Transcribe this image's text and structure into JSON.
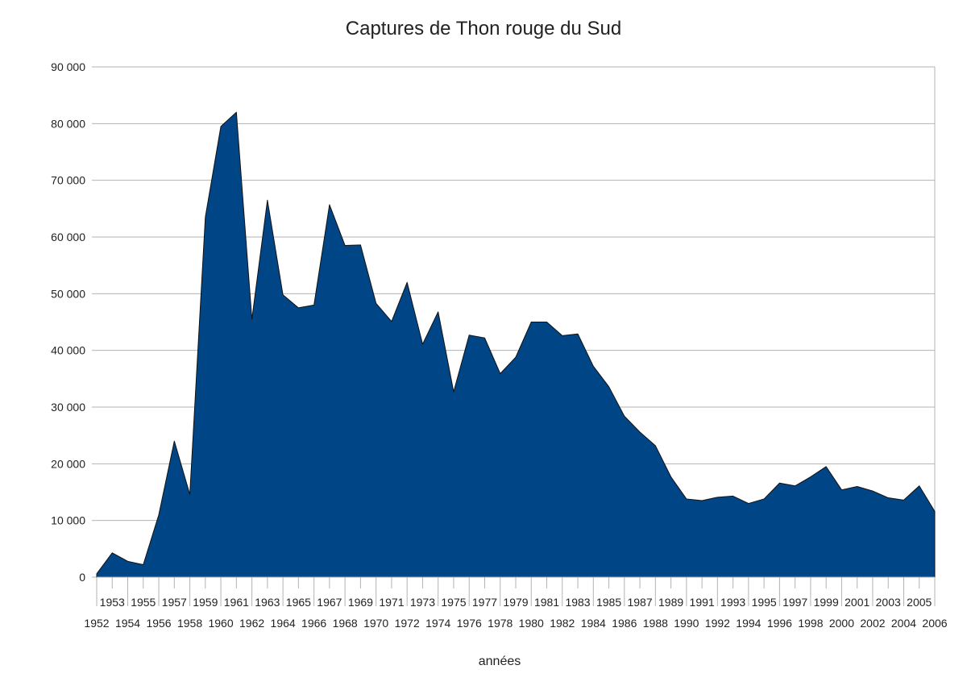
{
  "chart_data": {
    "type": "area",
    "title": "Captures de Thon rouge du Sud",
    "xlabel": "années",
    "ylabel": "",
    "ylim": [
      0,
      90000
    ],
    "y_ticks": [
      "0",
      "10 000",
      "20 000",
      "30 000",
      "40 000",
      "50 000",
      "60 000",
      "70 000",
      "80 000",
      "90 000"
    ],
    "y_tick_values": [
      0,
      10000,
      20000,
      30000,
      40000,
      50000,
      60000,
      70000,
      80000,
      90000
    ],
    "grid": true,
    "legend": "none",
    "x": [
      1952,
      1953,
      1954,
      1955,
      1956,
      1957,
      1958,
      1959,
      1960,
      1961,
      1962,
      1963,
      1964,
      1965,
      1966,
      1967,
      1968,
      1969,
      1970,
      1971,
      1972,
      1973,
      1974,
      1975,
      1976,
      1977,
      1978,
      1979,
      1980,
      1981,
      1982,
      1983,
      1984,
      1985,
      1986,
      1987,
      1988,
      1989,
      1990,
      1991,
      1992,
      1993,
      1994,
      1995,
      1996,
      1997,
      1998,
      1999,
      2000,
      2001,
      2002,
      2003,
      2004,
      2005,
      2006
    ],
    "series": [
      {
        "color": "#004586",
        "values": [
          600,
          4300,
          2800,
          2200,
          11000,
          24000,
          14600,
          63500,
          79500,
          82000,
          45500,
          66500,
          49800,
          47500,
          48000,
          65700,
          58500,
          58600,
          48300,
          45100,
          52000,
          41100,
          46800,
          32700,
          42700,
          42200,
          35900,
          38800,
          45000,
          45000,
          42600,
          42900,
          37200,
          33600,
          28400,
          25600,
          23200,
          17700,
          13800,
          13500,
          14100,
          14300,
          13000,
          13800,
          16600,
          16100,
          17700,
          19500,
          15400,
          16000,
          15200,
          14000,
          13600,
          16100,
          11600
        ]
      }
    ]
  }
}
